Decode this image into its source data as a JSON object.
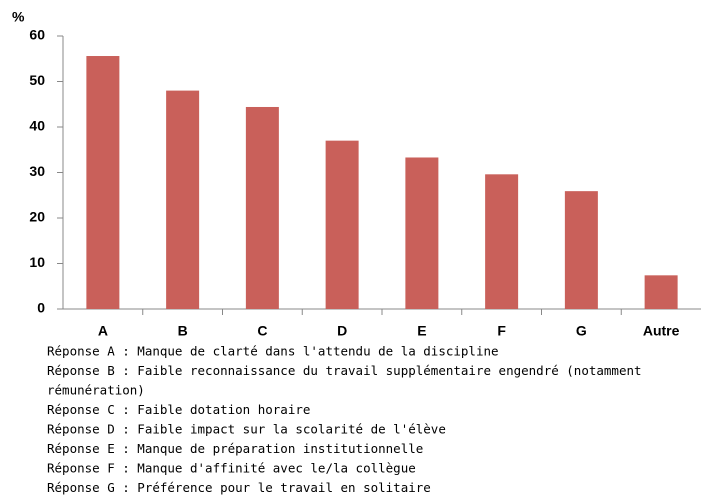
{
  "chart_data": {
    "type": "bar",
    "y_label": "%",
    "categories": [
      "A",
      "B",
      "C",
      "D",
      "E",
      "F",
      "G",
      "Autre"
    ],
    "values": [
      55.6,
      48,
      44.4,
      37,
      33.3,
      29.6,
      25.9,
      7.4
    ],
    "color": "#c9605a",
    "ylim": [
      0,
      60
    ],
    "yticks": [
      0,
      10,
      20,
      30,
      40,
      50,
      60
    ],
    "grid": false,
    "notes": [
      "Réponse A : Manque de clarté dans l'attendu de la discipline",
      "Réponse B : Faible reconnaissance du travail supplémentaire engendré (notamment",
      "rémunération)",
      "Réponse C : Faible dotation horaire",
      "Réponse D : Faible impact sur la scolarité de l'élève",
      "Réponse E : Manque de préparation institutionnelle",
      "Réponse F : Manque d'affinité avec le/la collègue",
      "Réponse G : Préférence pour le travail en solitaire"
    ]
  }
}
